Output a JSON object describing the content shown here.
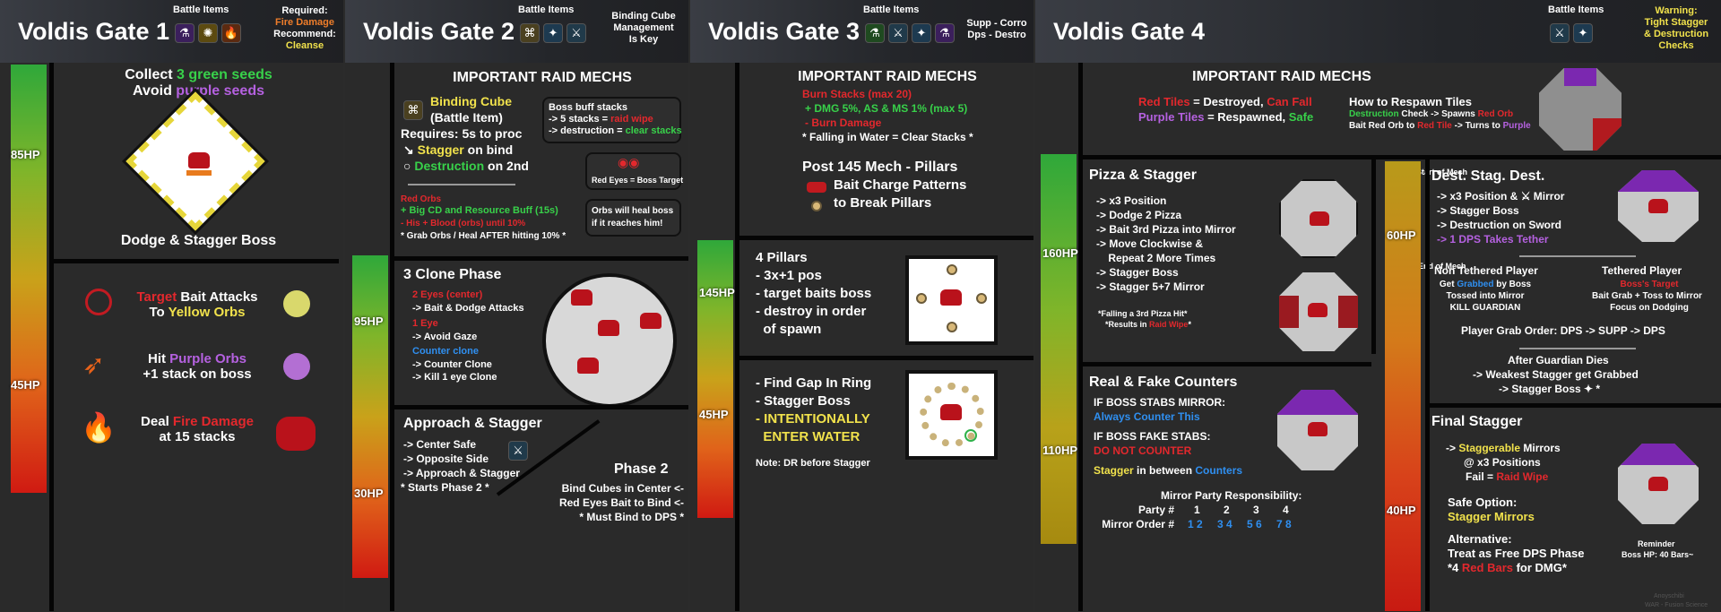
{
  "g1": {
    "title": "Voldis Gate 1",
    "battle_items": "Battle Items",
    "req1": "Required:",
    "req2": "Fire Damage",
    "rec1": "Recommend:",
    "rec2": "Cleanse",
    "hp": [
      "85HP",
      "45HP"
    ],
    "collect_a": "Collect ",
    "collect_b": "3 green seeds",
    "avoid_a": "Avoid ",
    "avoid_b": "purple seeds",
    "dodge": "Dodge & Stagger Boss",
    "target_a": "Target",
    "target_b": " Bait Attacks",
    "to_a": "To ",
    "to_b": "Yellow Orbs",
    "hit_a": "Hit ",
    "hit_b": "Purple Orbs",
    "stack": "+1 stack on boss",
    "deal_a": "Deal ",
    "deal_b": "Fire Damage",
    "at": "at 15 stacks"
  },
  "g2": {
    "title": "Voldis Gate 2",
    "battle_items": "Battle Items",
    "note": [
      "Binding Cube",
      "Management",
      "Is Key"
    ],
    "hp": [
      "95HP",
      "30HP"
    ],
    "mechs": "IMPORTANT RAID MECHS",
    "cube": "Binding Cube",
    "cube_sub": "(Battle Item)",
    "req": "Requires: 5s to proc",
    "stagger_a": "Stagger",
    "stagger_b": " on bind",
    "destr_a": "Destruction",
    "destr_b": " on 2nd",
    "boss_buff": "Boss buff stacks",
    "five_a": "-> 5 stacks = ",
    "five_b": "raid wipe",
    "destr_c": "-> destruction = ",
    "destr_d": "clear stacks",
    "red_eyes": "Red Eyes = Boss Target",
    "orbs": [
      "Orbs will heal boss",
      "if it reaches him!"
    ],
    "red_orbs": "Red Orbs",
    "big_cd": "+ Big CD and Resource Buff (15s)",
    "his": "- His + Blood (orbs) until 10%",
    "grab": "* Grab Orbs / Heal AFTER hitting 10% *",
    "clone": "3 Clone Phase",
    "two_eyes": "2 Eyes (center)",
    "bait": "-> Bait & Dodge Attacks",
    "one_eye": "1 Eye",
    "avoid": "-> Avoid Gaze",
    "counter": "Counter clone",
    "counter2": "-> Counter Clone",
    "kill": "-> Kill 1 eye Clone",
    "approach": "Approach & Stagger",
    "center": "-> Center Safe",
    "opposite": "-> Opposite Side",
    "appr2": "-> Approach & Stagger",
    "starts": "* Starts Phase 2 *",
    "phase2": "Phase 2",
    "bind1": "Bind Cubes in Center <-",
    "bind2": "Red Eyes Bait to Bind <-",
    "bind3": "* Must Bind to DPS *"
  },
  "g3": {
    "title": "Voldis Gate 3",
    "battle_items": "Battle Items",
    "note": [
      "Supp - Corro",
      "Dps - Destro"
    ],
    "hp": [
      "145HP",
      "45HP"
    ],
    "mechs": "IMPORTANT RAID MECHS",
    "burn_st": "Burn Stacks (max 20)",
    "dmg": "+ DMG 5%, AS & MS 1% (max 5)",
    "burn": "- Burn Damage",
    "fall": "* Falling in Water = Clear Stacks *",
    "post": "Post 145 Mech - Pillars",
    "charge": "Bait Charge Patterns",
    "break": "to Break Pillars",
    "p4": [
      "4 Pillars",
      "- 3x+1 pos",
      "- target baits boss",
      "- destroy in order",
      "  of spawn"
    ],
    "gap": [
      "- Find Gap In Ring",
      "- Stagger Boss"
    ],
    "int": [
      "- INTENTIONALLY",
      "  ENTER WATER"
    ],
    "dr": "Note: DR before Stagger"
  },
  "g4": {
    "title": "Voldis Gate 4",
    "battle_items": "Battle Items",
    "warn": [
      "Warning:",
      "Tight Stagger",
      "& Destruction",
      "Checks"
    ],
    "hp": [
      "160HP",
      "110HP",
      "60HP",
      "40HP"
    ],
    "mechs": "IMPORTANT RAID MECHS",
    "red_tile": "Red Tiles",
    "destroyed": " = Destroyed, ",
    "can_fall": "Can Fall",
    "purple_tile": "Purple Tiles",
    "respawned": " = Respawned, ",
    "safe": "Safe",
    "how": "How to Respawn Tiles",
    "destr_check": "Destruction",
    "check2": " Check -> Spawns ",
    "red_orb": "Red Orb",
    "bait_red": "Bait Red Orb to ",
    "red2": "Red Tile",
    "turns": " -> Turns to ",
    "purple2": "Purple",
    "pizza": "Pizza & Stagger",
    "start": "Start of Mech",
    "end": "End of Mech",
    "plist": [
      "-> x3 Position",
      "-> Dodge 2 Pizza",
      "-> Bait 3rd Pizza into Mirror",
      "-> Move Clockwise &",
      "    Repeat 2 More Times"
    ],
    "stag_boss": "-> Stagger Boss",
    "stag_57": "-> Stagger 5+7 Mirror",
    "fail3": "*Falling a 3rd Pizza Hit*",
    "results": "*Results in ",
    "wipe": "Raid Wipe",
    "real": "Real & Fake Counters",
    "stabs": "IF BOSS STABS MIRROR:",
    "always": "Always Counter This",
    "fake": "IF BOSS FAKE STABS:",
    "donot": "DO NOT COUNTER",
    "between_a": "Stagger",
    "between_b": " in between ",
    "between_c": "Counters",
    "mirror_resp": "Mirror Party Responsibility:",
    "party": "Party #",
    "order": "Mirror Order #",
    "orders": [
      "1 2",
      "3 4",
      "5 6",
      "7 8"
    ],
    "pnums": [
      "1",
      "2",
      "3",
      "4"
    ],
    "dsd": "Dest. Stag. Dest.",
    "d1": "-> x3 Position & ",
    "d1b": " Mirror",
    "d2": "-> Stagger Boss",
    "d3": "-> Destruction on Sword",
    "d4": "-> 1 DPS Takes Tether",
    "non": "Non Tethered Player",
    "get": "Get ",
    "grabbed": "Grabbed",
    "byboss": " by Boss",
    "tossed": "Tossed into Mirror",
    "kill": "KILL GUARDIAN",
    "teth": "Tethered Player",
    "boss_t": "Boss's Target",
    "bgrab": "Bait Grab + Toss to Mirror",
    "focus": "Focus on Dodging",
    "order_grab": "Player Grab Order: DPS -> SUPP -> DPS",
    "after": "After Guardian Dies",
    "weak": "-> Weakest Stagger get Grabbed",
    "stag_boss2": "-> Stagger Boss",
    "final": "Final Stagger",
    "fs1": "Staggerable",
    "fs1b": " Mirrors",
    "fs2": "@ x3 Positions",
    "fail": "Fail = ",
    "wipe2": "Raid Wipe",
    "safe_opt": "Safe Option:",
    "stag_mir": "Stagger Mirrors",
    "alt": "Alternative:",
    "treat": "Treat as Free DPS Phase",
    "red_four": "*4 ",
    "red_bars": "Red Bars",
    "dmg": " for DMG*",
    "reminder": "Reminder",
    "boss_hp": "Boss HP: 40 Bars~",
    "credit1": "Anoyschibi",
    "credit2": "WAR - Fusion Science"
  }
}
